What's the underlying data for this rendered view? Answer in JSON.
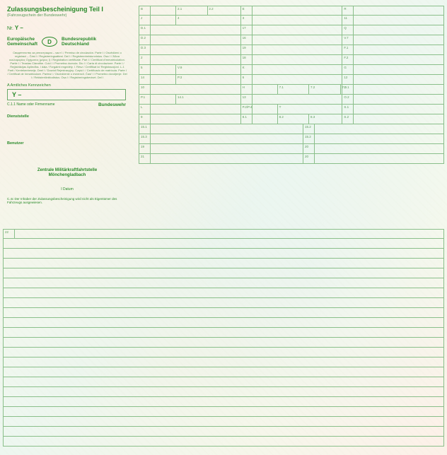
{
  "colors": {
    "text_primary": "#2a8a2a",
    "text_secondary": "#5a9a5a",
    "border": "#8abf8a",
    "bg_gradient_1": "#fdf0e8",
    "bg_gradient_2": "#f5f8ed",
    "bg_gradient_3": "#edf7f0"
  },
  "title": "Zulassungsbescheinigung Teil I",
  "subtitle": "(Fahrzeugschein der Bundeswehr)",
  "nr_label": "Nr.",
  "nr_value": "Y –",
  "eu_left": "Europäische\nGemeinschaft",
  "d_badge": "D",
  "eu_right": "Bundesrepublik\nDeutschland",
  "legal_text": "Свидетелство за регистрация – част I / Permiso de circulación. Parte I / Osvědčení o registraci – Část I / Registreringsattest. Del I / Registreerimistunnistus. Osa I / Άδεια κυκλοφορίας Οχήματος (μέρος I) / Registration certificate. Part I / Certificat d'immatriculation. Partie I / Teastas Cláraithe. Cuid I / Prometna dozvola. Dio I / Carta di circolazione. Parte I / Reģistrācijas Apliecība. I daļa / Forgalmi engedély. I. Rész / Ċertifikat ta' Reġistrazzjoni. L-1 Parti / Kentekenbewijs. Deel I / Dowód Rejestracyjny. Część I / Certificado de matrícula. Parte I / Certificat de înmatriculare. Partea I / Osvedčenie o evidencii. Časť I / Prometno dovoljenje. Del I / Rekisteröintitodistus. Osa I / Registreringsbeviset. Del I",
  "kennz_label": "A Amtliches Kennzeichen",
  "kennz_value": "Y –",
  "c11_label": "C.1.1 Name oder Firmenname",
  "c11_value": "Bundeswehr",
  "dienststelle": "Dienststelle",
  "benutzer": "Benutzer",
  "zentrale": "Zentrale Militärkraftfahrtstelle\nMönchengladbach",
  "datum": "I  Datum",
  "c4c": "C.4c Der Inhaber der Zulassungsbescheinigung wird nicht als Eigentümer des Fahrzeugs ausgewiesen.",
  "field_22": "22",
  "grid": {
    "col1_rows": [
      {
        "code": "B",
        "codes_right": [
          "2.1",
          "2.2"
        ]
      },
      {
        "code": "J",
        "codes_right": [
          "4"
        ]
      },
      {
        "code": "D.1"
      },
      {
        "code": "D.2"
      },
      {
        "code": "D.3"
      },
      {
        "code": "2"
      },
      {
        "code": "5",
        "codes_right": [
          "V.9"
        ]
      },
      {
        "code": "14",
        "codes_right": [
          "P.3"
        ]
      },
      {
        "code": "10"
      },
      {
        "code": "P.1",
        "codes_right": [
          "14.1"
        ]
      },
      {
        "code": "L"
      },
      {
        "code": "9"
      }
    ],
    "col2_rows": [
      {
        "code": "E"
      },
      {
        "code": "3"
      },
      {
        "code": "17"
      },
      {
        "code": "16"
      },
      {
        "code": "19"
      },
      {
        "code": "18"
      },
      {
        "code": "K"
      },
      {
        "code": "6"
      },
      {
        "code": "H",
        "codes_right": [
          "7.1",
          "7.2",
          "7.3"
        ]
      },
      {
        "code": "13"
      },
      {
        "code": "P.2/P.4",
        "codes_right": [
          "T"
        ]
      },
      {
        "code": "8.1",
        "codes_right": [
          "8.2",
          "8.3"
        ]
      }
    ],
    "col3_rows": [
      {
        "code": "R"
      },
      {
        "code": "11"
      },
      {
        "code": "Q"
      },
      {
        "code": "V.7"
      },
      {
        "code": "F.1"
      },
      {
        "code": "F.2"
      },
      {
        "code": "G"
      },
      {
        "code": "12"
      },
      {
        "code": "O.1"
      },
      {
        "code": "O.2"
      },
      {
        "code": "S.1"
      },
      {
        "code": "S.2"
      }
    ],
    "lower_rows": [
      {
        "left": "15.1",
        "right": "15.2"
      },
      {
        "left": "15.3",
        "right": "15.2"
      },
      {
        "left": "19",
        "right": "20"
      },
      {
        "left": "21",
        "right": "20"
      }
    ]
  },
  "bottom_lines_count": 22
}
